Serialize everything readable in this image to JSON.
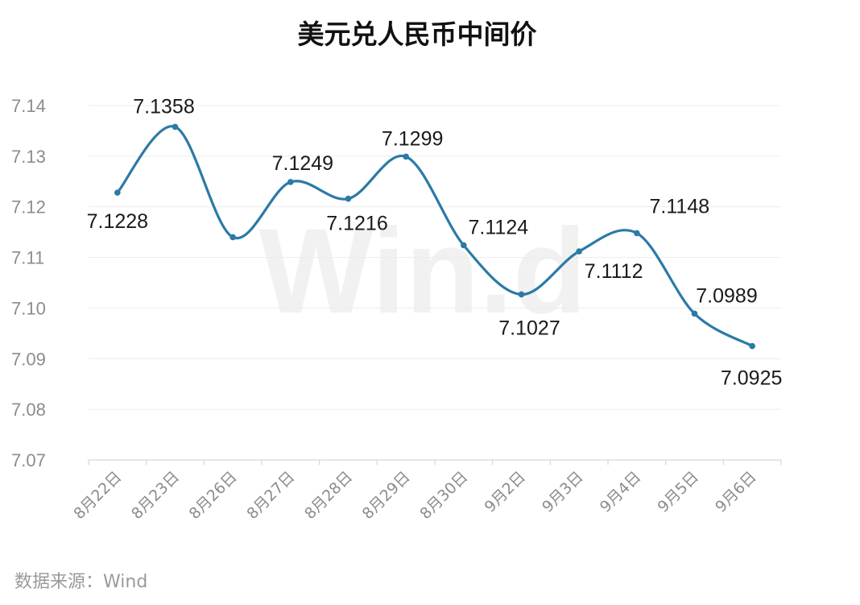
{
  "chart_data": {
    "type": "line",
    "title": "美元兑人民币中间价",
    "categories": [
      "8月22日",
      "8月23日",
      "8月26日",
      "8月27日",
      "8月28日",
      "8月29日",
      "8月30日",
      "9月2日",
      "9月3日",
      "9月4日",
      "9月5日",
      "9月6日"
    ],
    "series": [
      {
        "values": [
          7.1228,
          7.1358,
          7.114,
          7.1249,
          7.1216,
          7.1299,
          7.1124,
          7.1027,
          7.1112,
          7.1148,
          7.0989,
          7.0925
        ],
        "data_labels": [
          "7.1228",
          "7.1358",
          "",
          "7.1249",
          "7.1216",
          "7.1299",
          "7.1124",
          "7.1027",
          "7.1112",
          "7.1148",
          "7.0989",
          "7.0925"
        ],
        "color": "#2a7aa6"
      }
    ],
    "ylim": [
      7.07,
      7.14
    ],
    "yticks": [
      "7.07",
      "7.08",
      "7.09",
      "7.10",
      "7.11",
      "7.12",
      "7.13",
      "7.14"
    ],
    "xlabel": "",
    "ylabel": "",
    "grid": true,
    "smooth": true,
    "legend": "none"
  },
  "source_text": "数据来源：Wind",
  "watermark_text": "Win.d",
  "colors": {
    "line": "#2a7aa6",
    "grid": "#ececec",
    "axis": "#d6d6d6"
  }
}
